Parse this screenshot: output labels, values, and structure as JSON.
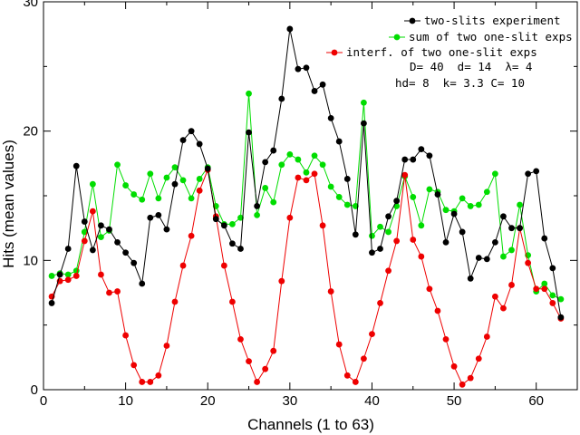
{
  "chart_data": {
    "type": "line",
    "xlabel": "Channels (1 to 63)",
    "ylabel": "Hits (mean values)",
    "xlim": [
      0,
      65
    ],
    "ylim": [
      0,
      30
    ],
    "x_ticks": [
      0,
      10,
      20,
      30,
      40,
      50,
      60
    ],
    "y_ticks": [
      0,
      10,
      20,
      30
    ],
    "x": [
      1,
      2,
      3,
      4,
      5,
      6,
      7,
      8,
      9,
      10,
      11,
      12,
      13,
      14,
      15,
      16,
      17,
      18,
      19,
      20,
      21,
      22,
      23,
      24,
      25,
      26,
      27,
      28,
      29,
      30,
      31,
      32,
      33,
      34,
      35,
      36,
      37,
      38,
      39,
      40,
      41,
      42,
      43,
      44,
      45,
      46,
      47,
      48,
      49,
      50,
      51,
      52,
      53,
      54,
      55,
      56,
      57,
      58,
      59,
      60,
      61,
      62,
      63
    ],
    "series": [
      {
        "name": "two-slits experiment",
        "color": "#000000",
        "values": [
          6.7,
          8.9,
          10.9,
          17.3,
          13.0,
          10.8,
          12.7,
          12.4,
          11.4,
          10.6,
          9.8,
          8.2,
          13.3,
          13.5,
          12.4,
          15.9,
          19.3,
          20.0,
          19.0,
          17.1,
          13.2,
          12.7,
          11.3,
          10.9,
          19.9,
          14.2,
          17.6,
          18.5,
          22.5,
          27.9,
          24.8,
          24.9,
          23.1,
          23.6,
          21.0,
          19.2,
          16.3,
          12.0,
          20.6,
          10.6,
          10.9,
          13.4,
          14.6,
          17.8,
          17.8,
          18.6,
          18.1,
          15.1,
          11.4,
          13.6,
          12.2,
          8.6,
          10.2,
          10.1,
          11.4,
          13.4,
          12.5,
          12.5,
          16.7,
          16.9,
          11.7,
          9.4,
          5.6
        ]
      },
      {
        "name": "sum of two one-slit exps",
        "color": "#00dd00",
        "values": [
          8.8,
          9.0,
          8.9,
          9.2,
          12.2,
          15.9,
          11.8,
          12.3,
          17.4,
          15.8,
          15.1,
          14.7,
          16.7,
          14.8,
          16.4,
          17.2,
          16.2,
          14.8,
          16.3,
          17.2,
          14.2,
          12.8,
          12.8,
          13.3,
          22.9,
          13.5,
          15.6,
          14.5,
          17.4,
          18.2,
          17.8,
          16.8,
          18.1,
          17.4,
          15.7,
          14.9,
          14.3,
          14.2,
          22.2,
          11.9,
          12.6,
          12.2,
          14.2,
          16.5,
          14.9,
          12.7,
          15.5,
          15.3,
          13.9,
          13.8,
          14.8,
          14.2,
          14.3,
          15.3,
          16.7,
          10.3,
          10.8,
          14.3,
          10.4,
          7.6,
          8.2,
          7.3,
          7.0
        ]
      },
      {
        "name": "interf. of two one-slit exps",
        "color": "#ee0000",
        "values": [
          7.2,
          8.4,
          8.5,
          8.8,
          11.5,
          13.8,
          8.9,
          7.5,
          7.6,
          4.2,
          1.9,
          0.6,
          0.6,
          1.1,
          3.4,
          6.8,
          9.6,
          11.9,
          15.4,
          17.0,
          13.4,
          9.6,
          6.8,
          3.9,
          2.2,
          0.6,
          1.6,
          3.0,
          8.4,
          13.3,
          16.4,
          16.2,
          16.7,
          12.7,
          7.6,
          3.5,
          1.1,
          0.6,
          2.4,
          4.3,
          6.7,
          9.2,
          11.5,
          16.6,
          11.6,
          10.3,
          7.8,
          6.1,
          3.9,
          1.8,
          0.4,
          0.9,
          2.4,
          4.1,
          7.2,
          6.3,
          8.1,
          12.5,
          9.8,
          7.8,
          7.8,
          6.7,
          5.5
        ]
      }
    ],
    "legend_position": "top-right",
    "parameters": [
      "D= 40  d= 14  λ= 4",
      "hd= 8  k= 3.3 C= 10"
    ]
  }
}
